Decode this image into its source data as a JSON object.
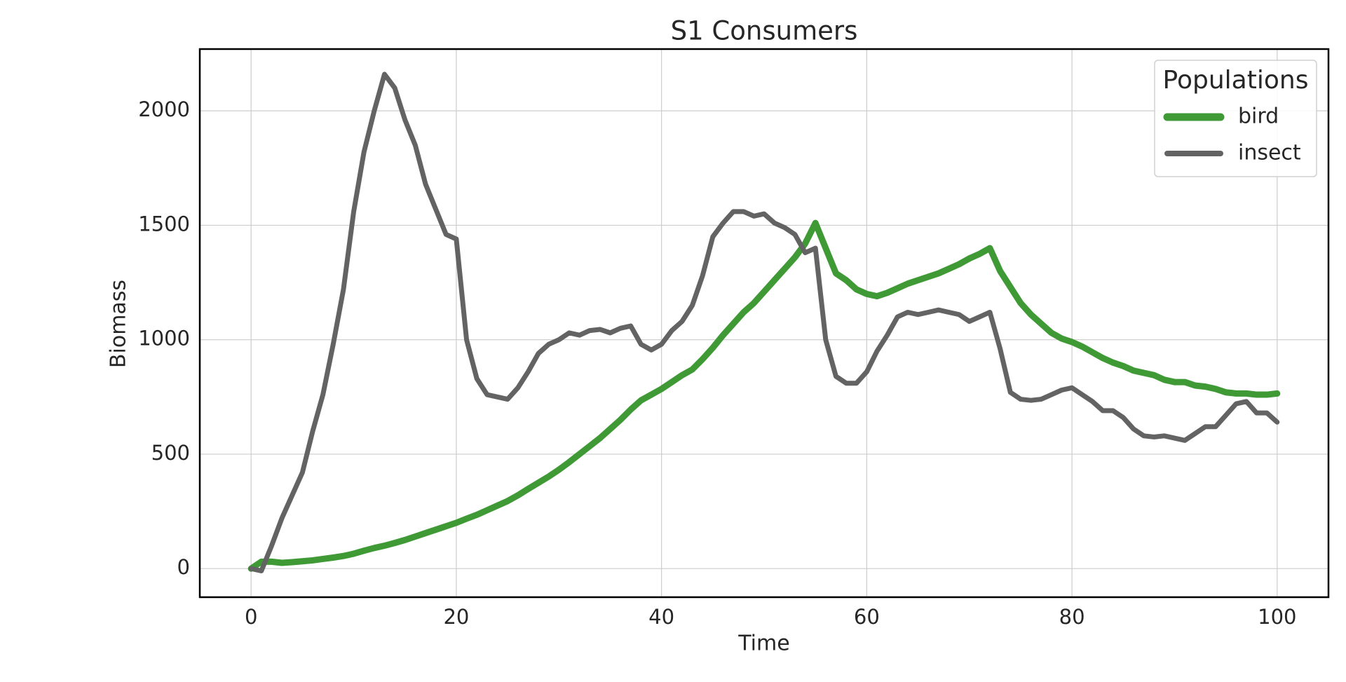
{
  "chart_data": {
    "type": "line",
    "title": "S1 Consumers",
    "xlabel": "Time",
    "ylabel": "Biomass",
    "x": [
      0,
      1,
      2,
      3,
      4,
      5,
      6,
      7,
      8,
      9,
      10,
      11,
      12,
      13,
      14,
      15,
      16,
      17,
      18,
      19,
      20,
      21,
      22,
      23,
      24,
      25,
      26,
      27,
      28,
      29,
      30,
      31,
      32,
      33,
      34,
      35,
      36,
      37,
      38,
      39,
      40,
      41,
      42,
      43,
      44,
      45,
      46,
      47,
      48,
      49,
      50,
      51,
      52,
      53,
      54,
      55,
      56,
      57,
      58,
      59,
      60,
      61,
      62,
      63,
      64,
      65,
      66,
      67,
      68,
      69,
      70,
      71,
      72,
      73,
      74,
      75,
      76,
      77,
      78,
      79,
      80,
      81,
      82,
      83,
      84,
      85,
      86,
      87,
      88,
      89,
      90,
      91,
      92,
      93,
      94,
      95,
      96,
      97,
      98,
      99,
      100
    ],
    "series": [
      {
        "name": "bird",
        "color": "#3f9a36",
        "values": [
          0,
          30,
          30,
          25,
          28,
          32,
          36,
          42,
          48,
          55,
          65,
          78,
          90,
          100,
          112,
          125,
          140,
          155,
          170,
          185,
          200,
          218,
          235,
          255,
          275,
          295,
          320,
          348,
          375,
          402,
          432,
          465,
          500,
          535,
          570,
          610,
          650,
          695,
          735,
          760,
          785,
          815,
          845,
          870,
          915,
          965,
          1020,
          1070,
          1120,
          1160,
          1210,
          1260,
          1310,
          1360,
          1420,
          1510,
          1400,
          1290,
          1260,
          1220,
          1200,
          1190,
          1205,
          1225,
          1245,
          1260,
          1275,
          1290,
          1310,
          1330,
          1355,
          1375,
          1400,
          1300,
          1230,
          1160,
          1110,
          1070,
          1030,
          1005,
          990,
          970,
          945,
          920,
          900,
          885,
          865,
          855,
          845,
          825,
          815,
          815,
          800,
          795,
          785,
          770,
          765,
          765,
          760,
          760,
          765
        ]
      },
      {
        "name": "insect",
        "color": "#636363",
        "values": [
          0,
          -10,
          100,
          220,
          320,
          420,
          600,
          760,
          980,
          1220,
          1560,
          1820,
          2000,
          2160,
          2100,
          1960,
          1850,
          1680,
          1570,
          1460,
          1440,
          1000,
          830,
          760,
          750,
          740,
          790,
          860,
          940,
          980,
          1000,
          1030,
          1020,
          1040,
          1045,
          1030,
          1050,
          1060,
          980,
          955,
          980,
          1040,
          1080,
          1150,
          1280,
          1450,
          1510,
          1560,
          1560,
          1540,
          1550,
          1510,
          1490,
          1460,
          1380,
          1400,
          1000,
          840,
          810,
          810,
          860,
          950,
          1020,
          1100,
          1120,
          1110,
          1120,
          1130,
          1120,
          1110,
          1080,
          1100,
          1120,
          960,
          770,
          740,
          735,
          740,
          760,
          780,
          790,
          760,
          730,
          690,
          690,
          660,
          610,
          580,
          575,
          580,
          570,
          560,
          590,
          620,
          620,
          670,
          720,
          730,
          680,
          680,
          640
        ]
      }
    ],
    "xlim": [
      -5,
      105
    ],
    "ylim": [
      -125,
      2270
    ],
    "xticks": [
      0,
      20,
      40,
      60,
      80,
      100
    ],
    "yticks": [
      0,
      500,
      1000,
      1500,
      2000
    ],
    "grid": true,
    "legend_title": "Populations",
    "legend": "upper right"
  }
}
